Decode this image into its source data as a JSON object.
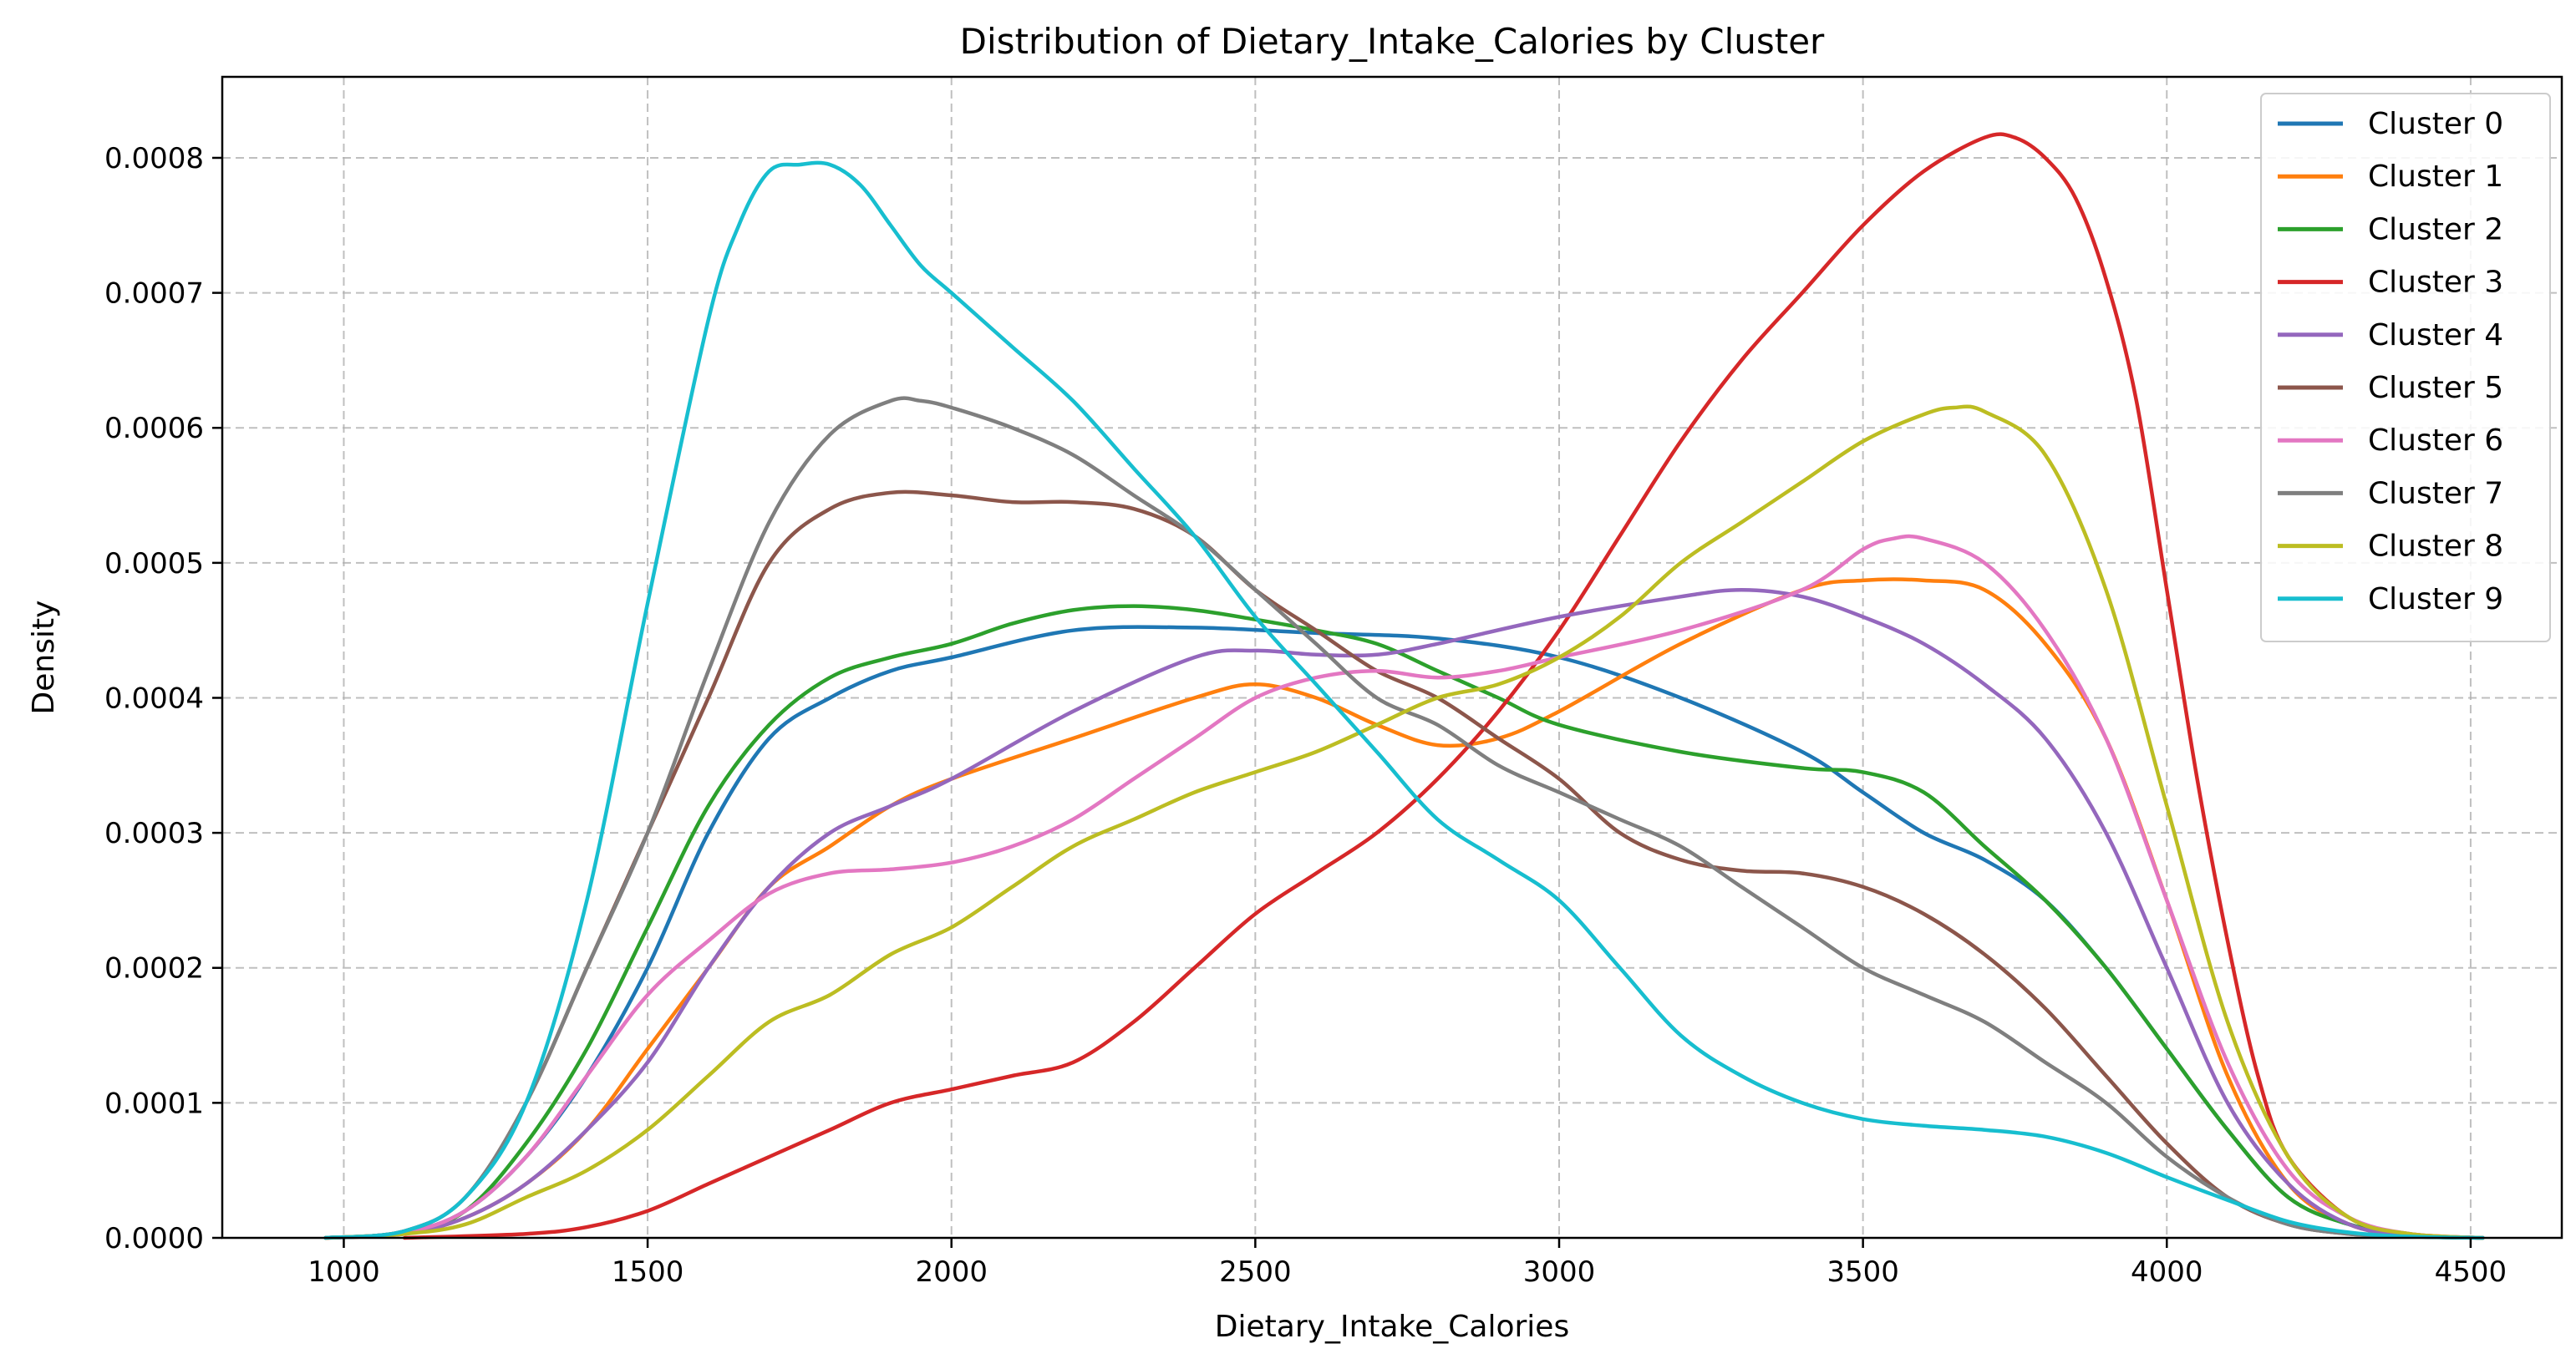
{
  "chart_data": {
    "type": "line",
    "title": "Distribution of Dietary_Intake_Calories by Cluster",
    "xlabel": "Dietary_Intake_Calories",
    "ylabel": "Density",
    "xlim": [
      800,
      4650
    ],
    "ylim": [
      0,
      0.00086
    ],
    "xticks": [
      1000,
      1500,
      2000,
      2500,
      3000,
      3500,
      4000,
      4500
    ],
    "xtick_labels": [
      "1000",
      "1500",
      "2000",
      "2500",
      "3000",
      "3500",
      "4000",
      "4500"
    ],
    "yticks": [
      0,
      0.0001,
      0.0002,
      0.0003,
      0.0004,
      0.0005,
      0.0006,
      0.0007,
      0.0008
    ],
    "ytick_labels": [
      "0.0000",
      "0.0001",
      "0.0002",
      "0.0003",
      "0.0004",
      "0.0005",
      "0.0006",
      "0.0007",
      "0.0008"
    ],
    "grid": true,
    "legend_position": "top-right",
    "series": [
      {
        "name": "Cluster 0",
        "color": "#1f77b4",
        "x": [
          970,
          1100,
          1200,
          1300,
          1400,
          1500,
          1600,
          1700,
          1800,
          1900,
          2000,
          2200,
          2400,
          2600,
          2800,
          3000,
          3200,
          3400,
          3500,
          3600,
          3700,
          3800,
          3900,
          4000,
          4100,
          4200,
          4300,
          4400,
          4520
        ],
        "y": [
          0.0,
          4e-06,
          2e-05,
          6e-05,
          0.00012,
          0.0002,
          0.0003,
          0.00037,
          0.0004,
          0.00042,
          0.00043,
          0.00045,
          0.000452,
          0.000448,
          0.000444,
          0.00043,
          0.0004,
          0.00036,
          0.00033,
          0.0003,
          0.00028,
          0.00025,
          0.0002,
          0.00014,
          8e-05,
          3e-05,
          1e-05,
          2e-06,
          0.0
        ]
      },
      {
        "name": "Cluster 1",
        "color": "#ff7f0e",
        "x": [
          970,
          1100,
          1200,
          1300,
          1400,
          1500,
          1600,
          1700,
          1800,
          1900,
          2000,
          2200,
          2400,
          2500,
          2600,
          2700,
          2800,
          2900,
          3000,
          3200,
          3400,
          3500,
          3600,
          3700,
          3800,
          3900,
          4000,
          4100,
          4200,
          4300,
          4400,
          4520
        ],
        "y": [
          0.0,
          3e-06,
          1.5e-05,
          4e-05,
          8e-05,
          0.00014,
          0.0002,
          0.00026,
          0.00029,
          0.00032,
          0.00034,
          0.00037,
          0.0004,
          0.00041,
          0.0004,
          0.00038,
          0.000365,
          0.00037,
          0.00039,
          0.00044,
          0.00048,
          0.000487,
          0.000487,
          0.00048,
          0.00044,
          0.00037,
          0.00025,
          0.00012,
          4e-05,
          1e-05,
          2e-06,
          0.0
        ]
      },
      {
        "name": "Cluster 2",
        "color": "#2ca02c",
        "x": [
          970,
          1100,
          1200,
          1300,
          1400,
          1500,
          1600,
          1700,
          1800,
          1900,
          2000,
          2100,
          2200,
          2300,
          2400,
          2500,
          2600,
          2700,
          2800,
          2900,
          3000,
          3200,
          3400,
          3500,
          3600,
          3700,
          3800,
          3900,
          4000,
          4100,
          4200,
          4300,
          4400,
          4520
        ],
        "y": [
          0.0,
          4e-06,
          2e-05,
          7e-05,
          0.00014,
          0.00023,
          0.00032,
          0.00038,
          0.000415,
          0.00043,
          0.00044,
          0.000455,
          0.000465,
          0.000468,
          0.000465,
          0.000458,
          0.00045,
          0.00044,
          0.00042,
          0.0004,
          0.00038,
          0.00036,
          0.000348,
          0.000345,
          0.00033,
          0.00029,
          0.00025,
          0.0002,
          0.00014,
          8e-05,
          3e-05,
          1e-05,
          2e-06,
          0.0
        ]
      },
      {
        "name": "Cluster 3",
        "color": "#d62728",
        "x": [
          1100,
          1300,
          1400,
          1500,
          1600,
          1700,
          1800,
          1900,
          2000,
          2100,
          2200,
          2300,
          2400,
          2500,
          2600,
          2700,
          2800,
          2900,
          3000,
          3100,
          3200,
          3300,
          3400,
          3500,
          3600,
          3700,
          3750,
          3800,
          3850,
          3900,
          3950,
          4000,
          4050,
          4100,
          4150,
          4200,
          4300,
          4400,
          4520
        ],
        "y": [
          0.0,
          3e-06,
          8e-06,
          2e-05,
          4e-05,
          6e-05,
          8e-05,
          0.0001,
          0.00011,
          0.00012,
          0.00013,
          0.00016,
          0.0002,
          0.00024,
          0.00027,
          0.0003,
          0.00034,
          0.00039,
          0.00045,
          0.00052,
          0.00059,
          0.00065,
          0.0007,
          0.00075,
          0.00079,
          0.000815,
          0.000815,
          0.0008,
          0.00077,
          0.00071,
          0.00062,
          0.00048,
          0.00034,
          0.00022,
          0.00012,
          6e-05,
          1.5e-05,
          3e-06,
          0.0
        ]
      },
      {
        "name": "Cluster 4",
        "color": "#9467bd",
        "x": [
          970,
          1100,
          1200,
          1300,
          1400,
          1500,
          1600,
          1700,
          1800,
          1900,
          2000,
          2200,
          2400,
          2500,
          2600,
          2700,
          2800,
          3000,
          3200,
          3300,
          3400,
          3500,
          3600,
          3700,
          3800,
          3900,
          4000,
          4100,
          4200,
          4300,
          4400,
          4520
        ],
        "y": [
          0.0,
          3e-06,
          1.5e-05,
          4e-05,
          8e-05,
          0.00013,
          0.0002,
          0.00026,
          0.0003,
          0.00032,
          0.00034,
          0.00039,
          0.00043,
          0.000435,
          0.000432,
          0.000432,
          0.00044,
          0.00046,
          0.000475,
          0.00048,
          0.000475,
          0.00046,
          0.00044,
          0.00041,
          0.00037,
          0.0003,
          0.0002,
          0.0001,
          4e-05,
          1e-05,
          2e-06,
          0.0
        ]
      },
      {
        "name": "Cluster 5",
        "color": "#8c564b",
        "x": [
          970,
          1100,
          1200,
          1300,
          1400,
          1500,
          1600,
          1700,
          1800,
          1900,
          2000,
          2100,
          2200,
          2300,
          2400,
          2500,
          2600,
          2700,
          2800,
          2900,
          3000,
          3100,
          3200,
          3300,
          3400,
          3500,
          3600,
          3700,
          3800,
          3900,
          4000,
          4100,
          4200,
          4300,
          4400,
          4520
        ],
        "y": [
          0.0,
          5e-06,
          3e-05,
          0.0001,
          0.0002,
          0.0003,
          0.0004,
          0.0005,
          0.00054,
          0.000552,
          0.00055,
          0.000545,
          0.000545,
          0.00054,
          0.00052,
          0.00048,
          0.00045,
          0.00042,
          0.0004,
          0.00037,
          0.00034,
          0.0003,
          0.00028,
          0.000272,
          0.00027,
          0.00026,
          0.00024,
          0.00021,
          0.00017,
          0.00012,
          7e-05,
          3e-05,
          1e-05,
          3e-06,
          1e-06,
          0.0
        ]
      },
      {
        "name": "Cluster 6",
        "color": "#e377c2",
        "x": [
          970,
          1100,
          1200,
          1300,
          1400,
          1500,
          1600,
          1700,
          1800,
          1900,
          2000,
          2100,
          2200,
          2300,
          2400,
          2500,
          2600,
          2700,
          2800,
          2900,
          3000,
          3200,
          3400,
          3500,
          3550,
          3600,
          3700,
          3800,
          3900,
          4000,
          4100,
          4200,
          4300,
          4400,
          4520
        ],
        "y": [
          0.0,
          4e-06,
          2e-05,
          6e-05,
          0.00012,
          0.00018,
          0.00022,
          0.000255,
          0.00027,
          0.000273,
          0.000278,
          0.00029,
          0.00031,
          0.00034,
          0.00037,
          0.0004,
          0.000415,
          0.00042,
          0.000415,
          0.00042,
          0.00043,
          0.00045,
          0.00048,
          0.00051,
          0.000518,
          0.000518,
          0.0005,
          0.00045,
          0.00037,
          0.00025,
          0.00013,
          5e-05,
          1.5e-05,
          3e-06,
          0.0
        ]
      },
      {
        "name": "Cluster 7",
        "color": "#7f7f7f",
        "x": [
          970,
          1100,
          1200,
          1300,
          1400,
          1500,
          1600,
          1700,
          1800,
          1900,
          1950,
          2000,
          2100,
          2200,
          2300,
          2400,
          2500,
          2600,
          2700,
          2800,
          2900,
          3000,
          3100,
          3200,
          3300,
          3400,
          3500,
          3600,
          3700,
          3800,
          3900,
          4000,
          4100,
          4200,
          4300,
          4400,
          4520
        ],
        "y": [
          0.0,
          5e-06,
          3e-05,
          0.0001,
          0.0002,
          0.0003,
          0.00042,
          0.00053,
          0.000595,
          0.00062,
          0.00062,
          0.000615,
          0.0006,
          0.00058,
          0.00055,
          0.00052,
          0.00048,
          0.00044,
          0.0004,
          0.00038,
          0.00035,
          0.00033,
          0.00031,
          0.00029,
          0.00026,
          0.00023,
          0.0002,
          0.00018,
          0.00016,
          0.00013,
          0.0001,
          6e-05,
          3e-05,
          1e-05,
          3e-06,
          1e-06,
          0.0
        ]
      },
      {
        "name": "Cluster 8",
        "color": "#bcbd22",
        "x": [
          970,
          1100,
          1200,
          1300,
          1400,
          1500,
          1600,
          1700,
          1800,
          1900,
          2000,
          2100,
          2200,
          2300,
          2400,
          2500,
          2600,
          2700,
          2800,
          2900,
          3000,
          3100,
          3200,
          3300,
          3400,
          3500,
          3600,
          3650,
          3700,
          3800,
          3900,
          4000,
          4100,
          4200,
          4300,
          4400,
          4520
        ],
        "y": [
          0.0,
          3e-06,
          1e-05,
          3e-05,
          5e-05,
          8e-05,
          0.00012,
          0.00016,
          0.00018,
          0.00021,
          0.00023,
          0.00026,
          0.00029,
          0.00031,
          0.00033,
          0.000345,
          0.00036,
          0.00038,
          0.0004,
          0.00041,
          0.00043,
          0.00046,
          0.0005,
          0.00053,
          0.00056,
          0.00059,
          0.00061,
          0.000615,
          0.000612,
          0.00058,
          0.00048,
          0.00032,
          0.00016,
          6e-05,
          1.5e-05,
          3e-06,
          0.0
        ]
      },
      {
        "name": "Cluster 9",
        "color": "#17becf",
        "x": [
          970,
          1100,
          1200,
          1300,
          1400,
          1500,
          1600,
          1650,
          1700,
          1750,
          1800,
          1850,
          1900,
          1950,
          2000,
          2100,
          2200,
          2300,
          2400,
          2500,
          2600,
          2700,
          2800,
          2900,
          3000,
          3100,
          3200,
          3300,
          3400,
          3500,
          3600,
          3700,
          3800,
          3900,
          4000,
          4100,
          4200,
          4300,
          4400,
          4520
        ],
        "y": [
          0.0,
          5e-06,
          3e-05,
          0.0001,
          0.00025,
          0.00047,
          0.00068,
          0.00075,
          0.00079,
          0.000795,
          0.000795,
          0.00078,
          0.00075,
          0.00072,
          0.0007,
          0.00066,
          0.00062,
          0.00057,
          0.00052,
          0.00046,
          0.00041,
          0.00036,
          0.00031,
          0.00028,
          0.00025,
          0.0002,
          0.00015,
          0.00012,
          0.0001,
          8.8e-05,
          8.3e-05,
          8e-05,
          7.5e-05,
          6.3e-05,
          4.5e-05,
          2.8e-05,
          1.2e-05,
          4e-06,
          1e-06,
          0.0
        ]
      }
    ]
  }
}
